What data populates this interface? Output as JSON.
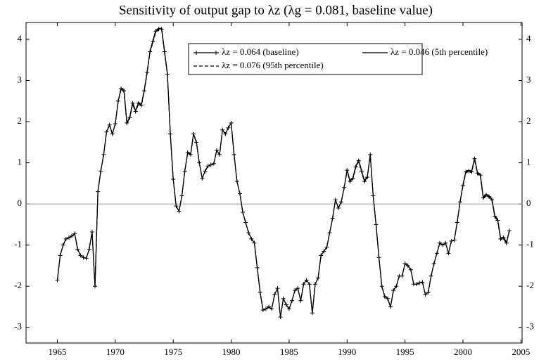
{
  "chart_data": {
    "type": "line",
    "title": "Sensitivity of output gap to λz (λg = 0.081, baseline value)",
    "x": [
      1965,
      1965.25,
      1965.5,
      1965.75,
      1966,
      1966.25,
      1966.5,
      1966.75,
      1967,
      1967.25,
      1967.5,
      1967.75,
      1968,
      1968.25,
      1968.5,
      1968.75,
      1969,
      1969.25,
      1969.5,
      1969.75,
      1970,
      1970.25,
      1970.5,
      1970.75,
      1971,
      1971.25,
      1971.5,
      1971.75,
      1972,
      1972.25,
      1972.5,
      1972.75,
      1973,
      1973.25,
      1973.5,
      1973.75,
      1974,
      1974.25,
      1974.5,
      1974.75,
      1975,
      1975.25,
      1975.5,
      1975.75,
      1976,
      1976.25,
      1976.5,
      1976.75,
      1977,
      1977.25,
      1977.5,
      1977.75,
      1978,
      1978.25,
      1978.5,
      1978.75,
      1979,
      1979.25,
      1979.5,
      1979.75,
      1980,
      1980.25,
      1980.5,
      1980.75,
      1981,
      1981.25,
      1981.5,
      1981.75,
      1982,
      1982.25,
      1982.5,
      1982.75,
      1983,
      1983.25,
      1983.5,
      1983.75,
      1984,
      1984.25,
      1984.5,
      1984.75,
      1985,
      1985.25,
      1985.5,
      1985.75,
      1986,
      1986.25,
      1986.5,
      1986.75,
      1987,
      1987.25,
      1987.5,
      1987.75,
      1988,
      1988.25,
      1988.5,
      1988.75,
      1989,
      1989.25,
      1989.5,
      1989.75,
      1990,
      1990.25,
      1990.5,
      1990.75,
      1991,
      1991.25,
      1991.5,
      1991.75,
      1992,
      1992.25,
      1992.5,
      1992.75,
      1993,
      1993.25,
      1993.5,
      1993.75,
      1994,
      1994.25,
      1994.5,
      1994.75,
      1995,
      1995.25,
      1995.5,
      1995.75,
      1996,
      1996.25,
      1996.5,
      1996.75,
      1997,
      1997.25,
      1997.5,
      1997.75,
      1998,
      1998.25,
      1998.5,
      1998.75,
      1999,
      1999.25,
      1999.5,
      1999.75,
      2000,
      2000.25,
      2000.5,
      2000.75,
      2001,
      2001.25,
      2001.5,
      2001.75,
      2002,
      2002.25,
      2002.5,
      2002.75,
      2003,
      2003.25,
      2003.5,
      2003.75,
      2004
    ],
    "series": [
      {
        "name": "λz = 0.064 (baseline)",
        "color": "#000000",
        "marker": "+",
        "dash": false,
        "values": [
          -1.85,
          -1.25,
          -1.0,
          -0.85,
          -0.82,
          -0.78,
          -0.72,
          -1.1,
          -1.25,
          -1.3,
          -1.32,
          -1.1,
          -0.68,
          -2.0,
          0.3,
          0.8,
          1.2,
          1.75,
          1.92,
          1.7,
          1.95,
          2.5,
          2.8,
          2.75,
          1.97,
          2.1,
          2.45,
          2.25,
          2.45,
          2.4,
          2.75,
          3.2,
          3.7,
          3.95,
          4.2,
          4.25,
          4.25,
          3.7,
          3.15,
          1.7,
          0.6,
          -0.05,
          -0.18,
          0.2,
          0.8,
          1.25,
          1.2,
          1.7,
          1.5,
          1.0,
          0.62,
          0.8,
          0.92,
          0.95,
          0.98,
          1.3,
          1.2,
          1.8,
          1.7,
          1.85,
          1.97,
          1.2,
          0.55,
          0.25,
          -0.2,
          -0.45,
          -0.7,
          -0.85,
          -0.95,
          -1.55,
          -2.15,
          -2.58,
          -2.55,
          -2.5,
          -2.55,
          -2.2,
          -2.05,
          -2.75,
          -2.3,
          -2.45,
          -2.55,
          -2.35,
          -2.1,
          -2.05,
          -2.35,
          -1.95,
          -1.85,
          -1.95,
          -2.65,
          -1.95,
          -1.8,
          -1.25,
          -1.15,
          -1.05,
          -0.7,
          -0.35,
          0.1,
          -0.1,
          0.05,
          0.4,
          0.82,
          0.55,
          0.62,
          0.9,
          1.05,
          0.8,
          0.55,
          0.65,
          1.2,
          0.2,
          -0.5,
          -1.3,
          -2.0,
          -2.25,
          -2.3,
          -2.5,
          -2.1,
          -2.0,
          -1.75,
          -1.75,
          -1.45,
          -1.5,
          -1.6,
          -1.95,
          -1.95,
          -1.92,
          -1.9,
          -2.2,
          -2.15,
          -1.75,
          -1.45,
          -1.2,
          -0.95,
          -1.0,
          -0.95,
          -1.2,
          -0.9,
          -0.88,
          -0.45,
          0.05,
          0.45,
          0.78,
          0.8,
          0.78,
          1.1,
          0.75,
          0.7,
          0.15,
          0.22,
          0.18,
          0.1,
          -0.3,
          -0.4,
          -0.85,
          -0.82,
          -0.95,
          -0.65
        ]
      },
      {
        "name": "λz = 0.046 (5th percentile)",
        "color": "#000000",
        "marker": "",
        "dash": false,
        "values": [
          -1.85,
          -1.25,
          -1.0,
          -0.85,
          -0.82,
          -0.78,
          -0.72,
          -1.1,
          -1.25,
          -1.3,
          -1.32,
          -1.1,
          -0.68,
          -2.0,
          0.3,
          0.8,
          1.2,
          1.75,
          1.92,
          1.7,
          1.95,
          2.5,
          2.82,
          2.78,
          1.97,
          2.12,
          2.47,
          2.27,
          2.47,
          2.42,
          2.77,
          3.22,
          3.72,
          3.98,
          4.23,
          4.27,
          4.27,
          3.72,
          3.17,
          1.7,
          0.6,
          -0.05,
          -0.18,
          0.2,
          0.8,
          1.26,
          1.21,
          1.71,
          1.51,
          1.0,
          0.62,
          0.8,
          0.92,
          0.95,
          0.98,
          1.3,
          1.2,
          1.8,
          1.7,
          1.85,
          1.97,
          1.2,
          0.55,
          0.25,
          -0.2,
          -0.45,
          -0.7,
          -0.85,
          -0.95,
          -1.55,
          -2.15,
          -2.58,
          -2.55,
          -2.5,
          -2.55,
          -2.2,
          -2.05,
          -2.75,
          -2.3,
          -2.45,
          -2.55,
          -2.35,
          -2.1,
          -2.05,
          -2.35,
          -1.95,
          -1.85,
          -1.95,
          -2.65,
          -1.95,
          -1.8,
          -1.25,
          -1.15,
          -1.05,
          -0.7,
          -0.35,
          0.1,
          -0.1,
          0.05,
          0.4,
          0.84,
          0.57,
          0.64,
          0.92,
          1.07,
          0.82,
          0.57,
          0.67,
          1.2,
          0.2,
          -0.5,
          -1.3,
          -2.0,
          -2.25,
          -2.3,
          -2.5,
          -2.1,
          -2.0,
          -1.75,
          -1.75,
          -1.45,
          -1.5,
          -1.6,
          -1.95,
          -1.95,
          -1.92,
          -1.9,
          -2.2,
          -2.15,
          -1.75,
          -1.45,
          -1.2,
          -0.95,
          -1.0,
          -0.95,
          -1.2,
          -0.9,
          -0.88,
          -0.45,
          0.05,
          0.47,
          0.8,
          0.82,
          0.8,
          1.12,
          0.77,
          0.72,
          0.17,
          0.24,
          0.2,
          0.12,
          -0.28,
          -0.38,
          -0.83,
          -0.8,
          -0.93,
          -0.65
        ]
      },
      {
        "name": "λz = 0.076 (95th percentile)",
        "color": "#000000",
        "marker": "",
        "dash": true,
        "values": [
          -1.85,
          -1.25,
          -1.0,
          -0.85,
          -0.82,
          -0.78,
          -0.72,
          -1.1,
          -1.25,
          -1.3,
          -1.32,
          -1.1,
          -0.68,
          -2.0,
          0.3,
          0.8,
          1.2,
          1.75,
          1.92,
          1.7,
          1.95,
          2.48,
          2.78,
          2.72,
          1.95,
          2.08,
          2.43,
          2.23,
          2.43,
          2.38,
          2.73,
          3.18,
          3.68,
          3.93,
          4.18,
          4.23,
          4.23,
          3.68,
          3.13,
          1.7,
          0.6,
          -0.05,
          -0.18,
          0.2,
          0.8,
          1.24,
          1.19,
          1.69,
          1.49,
          1.0,
          0.62,
          0.8,
          0.92,
          0.95,
          0.98,
          1.3,
          1.2,
          1.8,
          1.7,
          1.85,
          1.97,
          1.2,
          0.55,
          0.25,
          -0.2,
          -0.45,
          -0.7,
          -0.85,
          -0.95,
          -1.55,
          -2.15,
          -2.58,
          -2.55,
          -2.5,
          -2.55,
          -2.2,
          -2.05,
          -2.75,
          -2.3,
          -2.45,
          -2.55,
          -2.35,
          -2.1,
          -2.05,
          -2.35,
          -1.95,
          -1.85,
          -1.95,
          -2.65,
          -1.95,
          -1.8,
          -1.25,
          -1.15,
          -1.05,
          -0.7,
          -0.35,
          0.1,
          -0.1,
          0.05,
          0.4,
          0.8,
          0.53,
          0.6,
          0.88,
          1.03,
          0.78,
          0.53,
          0.63,
          1.2,
          0.2,
          -0.5,
          -1.3,
          -2.0,
          -2.25,
          -2.3,
          -2.5,
          -2.1,
          -2.0,
          -1.75,
          -1.75,
          -1.45,
          -1.5,
          -1.6,
          -1.95,
          -1.95,
          -1.92,
          -1.9,
          -2.2,
          -2.15,
          -1.75,
          -1.45,
          -1.2,
          -0.95,
          -1.0,
          -0.95,
          -1.2,
          -0.9,
          -0.88,
          -0.45,
          0.05,
          0.43,
          0.76,
          0.78,
          0.76,
          1.08,
          0.73,
          0.68,
          0.13,
          0.2,
          0.16,
          0.08,
          -0.32,
          -0.42,
          -0.87,
          -0.84,
          -0.97,
          -0.65
        ]
      }
    ],
    "xlim": [
      1962.3,
      2005.1
    ],
    "ylim": [
      -3.38,
      4.41
    ],
    "xticks": [
      1965,
      1970,
      1975,
      1980,
      1985,
      1990,
      1995,
      2000,
      2005
    ],
    "yticks": [
      -3,
      -2,
      -1,
      0,
      1,
      2,
      3,
      4
    ],
    "zero_line": true
  }
}
